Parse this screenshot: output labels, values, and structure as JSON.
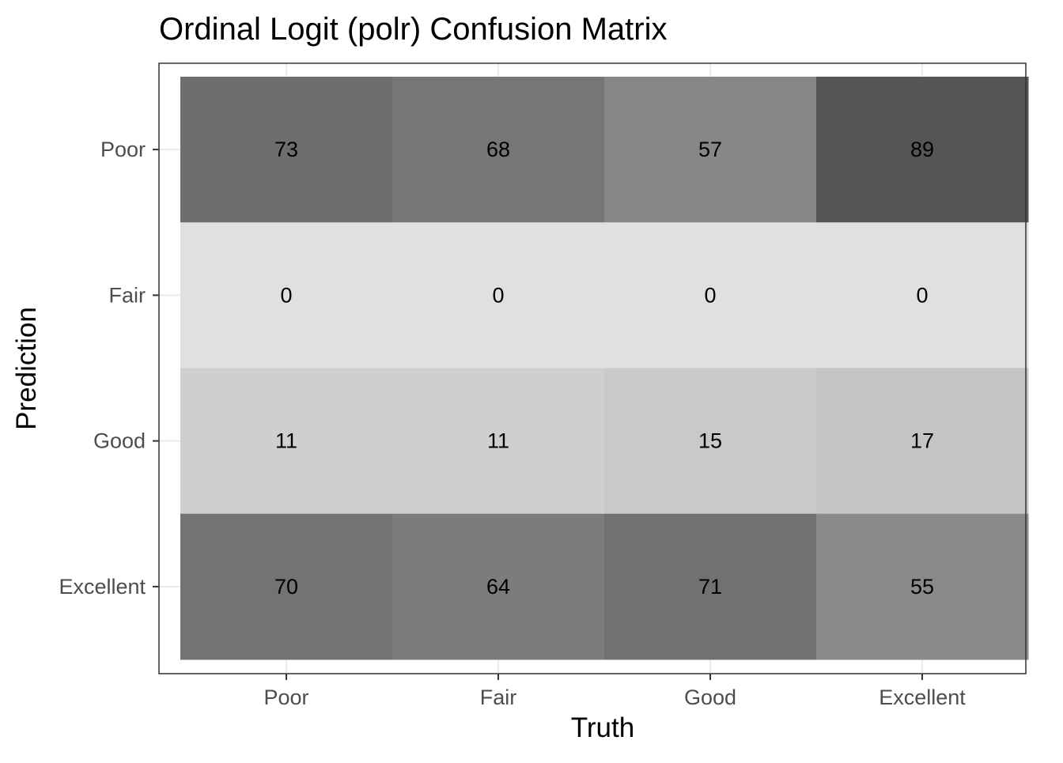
{
  "chart_data": {
    "type": "heatmap",
    "title": "Ordinal Logit (polr) Confusion Matrix",
    "xlabel": "Truth",
    "ylabel": "Prediction",
    "x_categories": [
      "Poor",
      "Fair",
      "Good",
      "Excellent"
    ],
    "y_categories": [
      "Poor",
      "Fair",
      "Good",
      "Excellent"
    ],
    "cells": [
      {
        "truth": "Poor",
        "prediction": "Poor",
        "count": 73
      },
      {
        "truth": "Fair",
        "prediction": "Poor",
        "count": 68
      },
      {
        "truth": "Good",
        "prediction": "Poor",
        "count": 57
      },
      {
        "truth": "Excellent",
        "prediction": "Poor",
        "count": 89
      },
      {
        "truth": "Poor",
        "prediction": "Fair",
        "count": 0
      },
      {
        "truth": "Fair",
        "prediction": "Fair",
        "count": 0
      },
      {
        "truth": "Good",
        "prediction": "Fair",
        "count": 0
      },
      {
        "truth": "Excellent",
        "prediction": "Fair",
        "count": 0
      },
      {
        "truth": "Poor",
        "prediction": "Good",
        "count": 11
      },
      {
        "truth": "Fair",
        "prediction": "Good",
        "count": 11
      },
      {
        "truth": "Good",
        "prediction": "Good",
        "count": 15
      },
      {
        "truth": "Excellent",
        "prediction": "Good",
        "count": 17
      },
      {
        "truth": "Poor",
        "prediction": "Excellent",
        "count": 70
      },
      {
        "truth": "Fair",
        "prediction": "Excellent",
        "count": 64
      },
      {
        "truth": "Good",
        "prediction": "Excellent",
        "count": 71
      },
      {
        "truth": "Excellent",
        "prediction": "Excellent",
        "count": 55
      }
    ],
    "color_scale": {
      "low": "#e0e0e0",
      "high": "#555555"
    },
    "grid": true,
    "legend": "none"
  }
}
